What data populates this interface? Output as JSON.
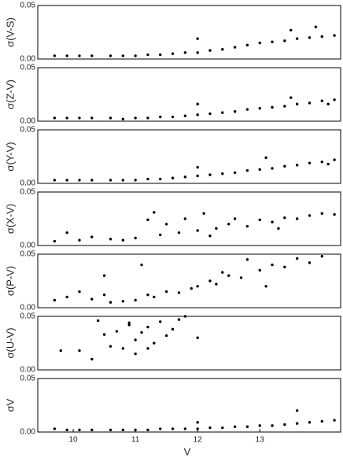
{
  "chart_data": [
    {
      "type": "scatter",
      "ylabel": "σ(V-S)",
      "color": "#000000",
      "xlim": [
        9.43,
        14.3
      ],
      "ylim": [
        0,
        0.05
      ],
      "yticks": [
        {
          "value": 0,
          "label": "0.00"
        },
        {
          "value": 0.05,
          "label": "0.05"
        }
      ],
      "x": [
        9.7,
        9.9,
        10.1,
        10.3,
        10.6,
        10.8,
        11.0,
        11.2,
        11.4,
        11.6,
        11.8,
        12.0,
        12.0,
        12.2,
        12.4,
        12.6,
        12.8,
        13.0,
        13.2,
        13.4,
        13.6,
        13.8,
        14.0,
        14.2,
        13.5,
        13.9
      ],
      "y": [
        0.003,
        0.003,
        0.003,
        0.003,
        0.003,
        0.003,
        0.003,
        0.004,
        0.004,
        0.005,
        0.006,
        0.006,
        0.019,
        0.008,
        0.009,
        0.011,
        0.013,
        0.015,
        0.016,
        0.017,
        0.019,
        0.02,
        0.021,
        0.022,
        0.027,
        0.03
      ]
    },
    {
      "type": "scatter",
      "ylabel": "σ(Z-V)",
      "color": "#000000",
      "xlim": [
        9.43,
        14.3
      ],
      "ylim": [
        0,
        0.05
      ],
      "yticks": [
        {
          "value": 0,
          "label": "0.00"
        },
        {
          "value": 0.05,
          "label": "0.05"
        }
      ],
      "x": [
        9.7,
        9.9,
        10.1,
        10.3,
        10.6,
        10.8,
        11.0,
        11.2,
        11.4,
        11.6,
        11.8,
        12.0,
        12.0,
        12.2,
        12.4,
        12.6,
        12.8,
        13.0,
        13.2,
        13.4,
        13.6,
        13.8,
        14.0,
        14.2,
        13.5,
        14.1
      ],
      "y": [
        0.003,
        0.003,
        0.003,
        0.003,
        0.003,
        0.002,
        0.003,
        0.003,
        0.004,
        0.004,
        0.005,
        0.006,
        0.016,
        0.007,
        0.008,
        0.009,
        0.011,
        0.012,
        0.013,
        0.014,
        0.016,
        0.017,
        0.019,
        0.02,
        0.022,
        0.016
      ]
    },
    {
      "type": "scatter",
      "ylabel": "σ(Y-V)",
      "color": "#000000",
      "xlim": [
        9.43,
        14.3
      ],
      "ylim": [
        0,
        0.05
      ],
      "yticks": [
        {
          "value": 0,
          "label": "0.00"
        },
        {
          "value": 0.05,
          "label": "0.05"
        }
      ],
      "x": [
        9.7,
        9.9,
        10.1,
        10.3,
        10.6,
        10.8,
        11.0,
        11.2,
        11.4,
        11.6,
        11.8,
        12.0,
        12.0,
        12.2,
        12.4,
        12.6,
        12.8,
        13.0,
        13.2,
        13.4,
        13.6,
        13.8,
        14.0,
        14.2,
        13.1,
        14.1
      ],
      "y": [
        0.003,
        0.003,
        0.003,
        0.003,
        0.003,
        0.003,
        0.003,
        0.004,
        0.004,
        0.005,
        0.006,
        0.007,
        0.015,
        0.008,
        0.009,
        0.01,
        0.012,
        0.013,
        0.014,
        0.016,
        0.017,
        0.019,
        0.02,
        0.022,
        0.024,
        0.018
      ]
    },
    {
      "type": "scatter",
      "ylabel": "σ(X-V)",
      "color": "#000000",
      "xlim": [
        9.43,
        14.3
      ],
      "ylim": [
        0,
        0.05
      ],
      "yticks": [
        {
          "value": 0,
          "label": "0.00"
        },
        {
          "value": 0.05,
          "label": "0.05"
        }
      ],
      "x": [
        9.7,
        9.9,
        10.1,
        10.3,
        10.6,
        10.8,
        11.0,
        11.2,
        11.4,
        11.5,
        11.7,
        11.8,
        12.0,
        12.1,
        12.3,
        12.5,
        12.6,
        12.8,
        13.0,
        13.2,
        13.4,
        13.6,
        13.8,
        14.0,
        14.2,
        11.3,
        12.2,
        13.3
      ],
      "y": [
        0.004,
        0.012,
        0.005,
        0.008,
        0.006,
        0.005,
        0.007,
        0.024,
        0.01,
        0.02,
        0.012,
        0.025,
        0.014,
        0.03,
        0.016,
        0.02,
        0.025,
        0.018,
        0.024,
        0.022,
        0.026,
        0.025,
        0.028,
        0.03,
        0.029,
        0.031,
        0.009,
        0.016
      ]
    },
    {
      "type": "scatter",
      "ylabel": "σ(P-V)",
      "color": "#000000",
      "xlim": [
        9.43,
        14.3
      ],
      "ylim": [
        0,
        0.05
      ],
      "yticks": [
        {
          "value": 0,
          "label": "0.00"
        },
        {
          "value": 0.05,
          "label": "0.05"
        }
      ],
      "x": [
        9.7,
        9.9,
        10.1,
        10.3,
        10.5,
        10.6,
        10.8,
        11.0,
        11.1,
        11.3,
        11.5,
        11.7,
        11.9,
        12.0,
        12.2,
        12.3,
        12.5,
        12.7,
        12.8,
        13.0,
        13.2,
        13.4,
        13.6,
        13.8,
        14.0,
        10.5,
        11.2,
        12.4,
        13.1
      ],
      "y": [
        0.007,
        0.01,
        0.015,
        0.008,
        0.012,
        0.005,
        0.006,
        0.007,
        0.04,
        0.01,
        0.015,
        0.014,
        0.018,
        0.02,
        0.025,
        0.022,
        0.03,
        0.028,
        0.045,
        0.035,
        0.04,
        0.038,
        0.046,
        0.042,
        0.048,
        0.03,
        0.012,
        0.033,
        0.02
      ]
    },
    {
      "type": "scatter",
      "ylabel": "σ(U-V)",
      "color": "#000000",
      "xlim": [
        9.43,
        14.3
      ],
      "ylim": [
        0,
        0.05
      ],
      "yticks": [
        {
          "value": 0,
          "label": "0.00"
        },
        {
          "value": 0.05,
          "label": "0.05"
        }
      ],
      "x": [
        9.8,
        10.1,
        10.3,
        10.4,
        10.6,
        10.7,
        10.8,
        10.9,
        11.0,
        11.0,
        11.1,
        11.2,
        11.3,
        11.4,
        11.5,
        11.7,
        11.8,
        12.0,
        10.5,
        10.9,
        11.2,
        11.6
      ],
      "y": [
        0.018,
        0.018,
        0.01,
        0.046,
        0.022,
        0.036,
        0.02,
        0.042,
        0.028,
        0.015,
        0.035,
        0.04,
        0.025,
        0.045,
        0.032,
        0.047,
        0.05,
        0.03,
        0.033,
        0.044,
        0.02,
        0.038
      ]
    },
    {
      "type": "scatter",
      "ylabel": "σV",
      "xlabel": "V",
      "color": "#000000",
      "xlim": [
        9.43,
        14.3
      ],
      "ylim": [
        0,
        0.05
      ],
      "yticks": [
        {
          "value": 0,
          "label": "0.00"
        },
        {
          "value": 0.05,
          "label": "0.05"
        }
      ],
      "xticks": [
        10,
        11,
        12,
        13
      ],
      "x": [
        9.7,
        9.9,
        10.1,
        10.3,
        10.6,
        10.8,
        11.0,
        11.2,
        11.4,
        11.6,
        11.8,
        12.0,
        12.0,
        12.2,
        12.4,
        12.6,
        12.8,
        13.0,
        13.2,
        13.4,
        13.6,
        13.8,
        14.0,
        14.2,
        13.6
      ],
      "y": [
        0.003,
        0.002,
        0.002,
        0.002,
        0.002,
        0.002,
        0.002,
        0.002,
        0.003,
        0.003,
        0.003,
        0.003,
        0.009,
        0.004,
        0.004,
        0.005,
        0.005,
        0.006,
        0.006,
        0.007,
        0.008,
        0.009,
        0.01,
        0.011,
        0.02
      ]
    }
  ]
}
